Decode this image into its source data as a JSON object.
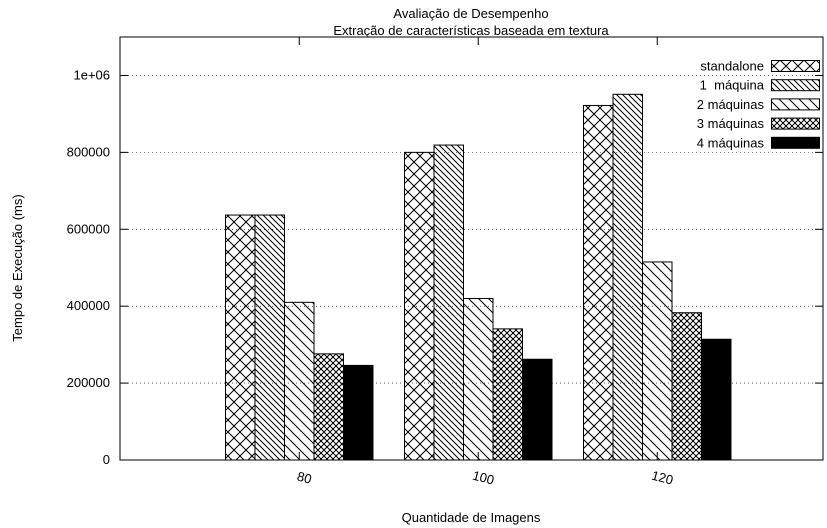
{
  "chart_data": {
    "type": "bar",
    "title": "Avaliação de Desempenho",
    "subtitle": "Extração de características baseada em textura",
    "xlabel": "Quantidade de Imagens",
    "ylabel": "Tempo de Execução (ms)",
    "categories": [
      "80",
      "100",
      "120"
    ],
    "ylim": [
      0,
      1100000
    ],
    "yticks": [
      0,
      200000,
      400000,
      600000,
      800000,
      1000000
    ],
    "ytick_labels": [
      "0",
      "200000",
      "400000",
      "600000",
      "800000",
      "1e+06"
    ],
    "grid": "horizontal dotted",
    "legend_position": "top-right",
    "series": [
      {
        "name": "standalone",
        "values": [
          637000,
          800000,
          922000
        ]
      },
      {
        "name": "1  máquina",
        "values": [
          637000,
          819000,
          951000
        ]
      },
      {
        "name": "2 máquinas",
        "values": [
          410000,
          420000,
          515000
        ]
      },
      {
        "name": "3 máquinas",
        "values": [
          276000,
          341000,
          383000
        ]
      },
      {
        "name": "4 máquinas",
        "values": [
          246000,
          262000,
          314000
        ]
      }
    ]
  }
}
